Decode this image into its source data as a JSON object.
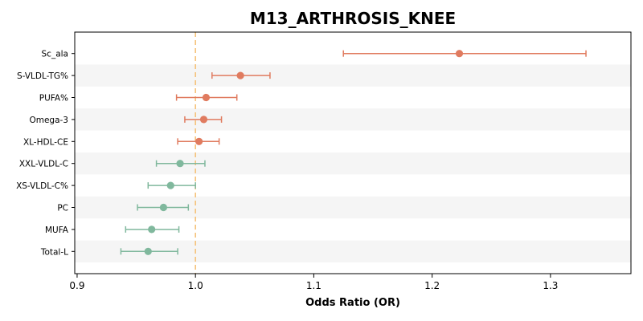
{
  "chart_data": {
    "type": "forest",
    "title": "M13_ARTHROSIS_KNEE",
    "xlabel": "Odds Ratio (OR)",
    "ylabel": "",
    "xlim": [
      0.898,
      1.368
    ],
    "xticks": [
      0.9,
      1.0,
      1.1,
      1.2,
      1.3
    ],
    "xtick_labels": [
      "0.9",
      "1.0",
      "1.1",
      "1.2",
      "1.3"
    ],
    "reference_line": 1.0,
    "grid": false,
    "legend": "none",
    "colors": {
      "positive": "#e07b5f",
      "negative": "#80b89d",
      "reference": "#f5c27a",
      "band": "#f5f5f5"
    },
    "rows": [
      {
        "label": "Sc_ala",
        "or": 1.223,
        "lo": 1.125,
        "hi": 1.33
      },
      {
        "label": "S-VLDL-TG%",
        "or": 1.038,
        "lo": 1.014,
        "hi": 1.063
      },
      {
        "label": "PUFA%",
        "or": 1.009,
        "lo": 0.984,
        "hi": 1.035
      },
      {
        "label": "Omega-3",
        "or": 1.007,
        "lo": 0.991,
        "hi": 1.022
      },
      {
        "label": "XL-HDL-CE",
        "or": 1.003,
        "lo": 0.985,
        "hi": 1.02
      },
      {
        "label": "XXL-VLDL-C",
        "or": 0.987,
        "lo": 0.967,
        "hi": 1.008
      },
      {
        "label": "XS-VLDL-C%",
        "or": 0.979,
        "lo": 0.96,
        "hi": 1.0
      },
      {
        "label": "PC",
        "or": 0.973,
        "lo": 0.951,
        "hi": 0.994
      },
      {
        "label": "MUFA",
        "or": 0.963,
        "lo": 0.941,
        "hi": 0.986
      },
      {
        "label": "Total-L",
        "or": 0.96,
        "lo": 0.937,
        "hi": 0.985
      }
    ]
  }
}
